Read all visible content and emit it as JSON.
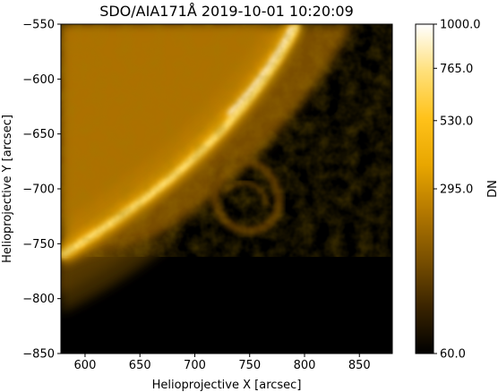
{
  "chart_data": {
    "type": "heatmap",
    "title": "SDO/AIA171Å 2019-10-01 10:20:09",
    "xlabel": "Helioprojective X [arcsec]",
    "ylabel": "Helioprojective Y [arcsec]",
    "xlim": [
      578,
      880
    ],
    "ylim": [
      -850,
      -550
    ],
    "x_ticks": [
      600,
      650,
      700,
      750,
      800,
      850
    ],
    "y_ticks": [
      -550,
      -600,
      -650,
      -700,
      -750,
      -800,
      -850
    ],
    "colorbar": {
      "label": "DN",
      "range": [
        60.0,
        1000.0
      ],
      "ticks": [
        "60.0",
        "295.0",
        "530.0",
        "765.0",
        "1000.0"
      ],
      "tick_values": [
        60.0,
        295.0,
        530.0,
        765.0,
        1000.0
      ],
      "scale": "sqrt",
      "colormap": "sdoaia171",
      "color_stops": [
        "#000000",
        "#3a2400",
        "#7a5000",
        "#b37800",
        "#e8a600",
        "#ffc21a",
        "#ffe07a",
        "#ffffff"
      ]
    },
    "features": {
      "limb": "bright limb arc from upper-right toward lower-left",
      "disk_side": "upper-left",
      "off_limb": "dark lower-right",
      "loops": "faint coronal loops above limb near x 700-790, y -690 to -750"
    }
  }
}
